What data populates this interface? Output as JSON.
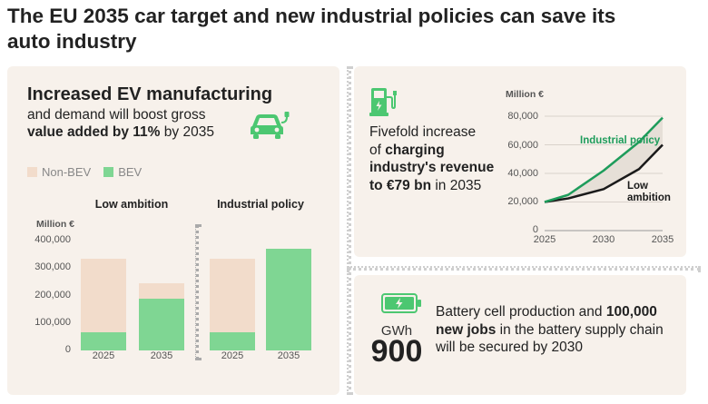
{
  "title": {
    "line1": "The EU 2035 car target and new industrial policies can save its",
    "line2": "auto industry"
  },
  "left": {
    "headline": "Increased EV manufacturing",
    "sub_line1": "and demand will boost gross",
    "sub_bold": "value added by 11%",
    "sub_tail": " by 2035",
    "icon": "electric-car-icon"
  },
  "right_top": {
    "icon": "charging-station-icon",
    "text_line1": "Fivefold increase",
    "text_of": "of ",
    "text_bold1": "charging",
    "text_bold2": "industry's revenue",
    "text_bold3": "to €79 bn",
    "text_tail": " in 2035"
  },
  "right_bottom": {
    "icon": "battery-charging-icon",
    "unit": "GWh",
    "value": "900",
    "text_a": "Battery cell production and ",
    "text_bold": "100,000",
    "text_bold2": "new jobs",
    "text_b": " in the battery supply chain",
    "text_c": "will be secured by 2030"
  },
  "colors": {
    "non_bev": "#f2dccb",
    "bev": "#7fd693",
    "green_line": "#1e9c5b",
    "dark_line": "#1a1a1a",
    "panel_bg": "#f7f1eb",
    "icon_green": "#4cc771"
  },
  "chart_data": [
    {
      "type": "bar",
      "stacked": true,
      "unit_label": "Million €",
      "legend": [
        "Non-BEV",
        "BEV"
      ],
      "groups": [
        "Low ambition",
        "Industrial policy"
      ],
      "categories": [
        "2025",
        "2035"
      ],
      "ylim": [
        0,
        400000
      ],
      "yticks": [
        "400,000",
        "300,000",
        "200,000",
        "100,000",
        "0"
      ],
      "series": [
        {
          "name": "BEV",
          "values": {
            "Low ambition": [
              65000,
              190000
            ],
            "Industrial policy": [
              65000,
              370000
            ]
          }
        },
        {
          "name": "Non-BEV",
          "values": {
            "Low ambition": [
              268000,
              53000
            ],
            "Industrial policy": [
              268000,
              0
            ]
          }
        }
      ]
    },
    {
      "type": "line",
      "unit_label": "Million €",
      "x_ticks": [
        "2025",
        "2030",
        "2035"
      ],
      "y_ticks": [
        "80,000",
        "60,000",
        "40,000",
        "20,000",
        "0"
      ],
      "ylim": [
        0,
        80000
      ],
      "xlim": [
        2025,
        2035
      ],
      "series": [
        {
          "name": "Industrial policy",
          "x": [
            2025,
            2027,
            2030,
            2033,
            2035
          ],
          "y": [
            20000,
            25000,
            42000,
            62000,
            79000
          ]
        },
        {
          "name": "Low ambition",
          "x": [
            2025,
            2027,
            2030,
            2033,
            2035
          ],
          "y": [
            20000,
            22500,
            29000,
            43000,
            60000
          ]
        }
      ]
    }
  ]
}
